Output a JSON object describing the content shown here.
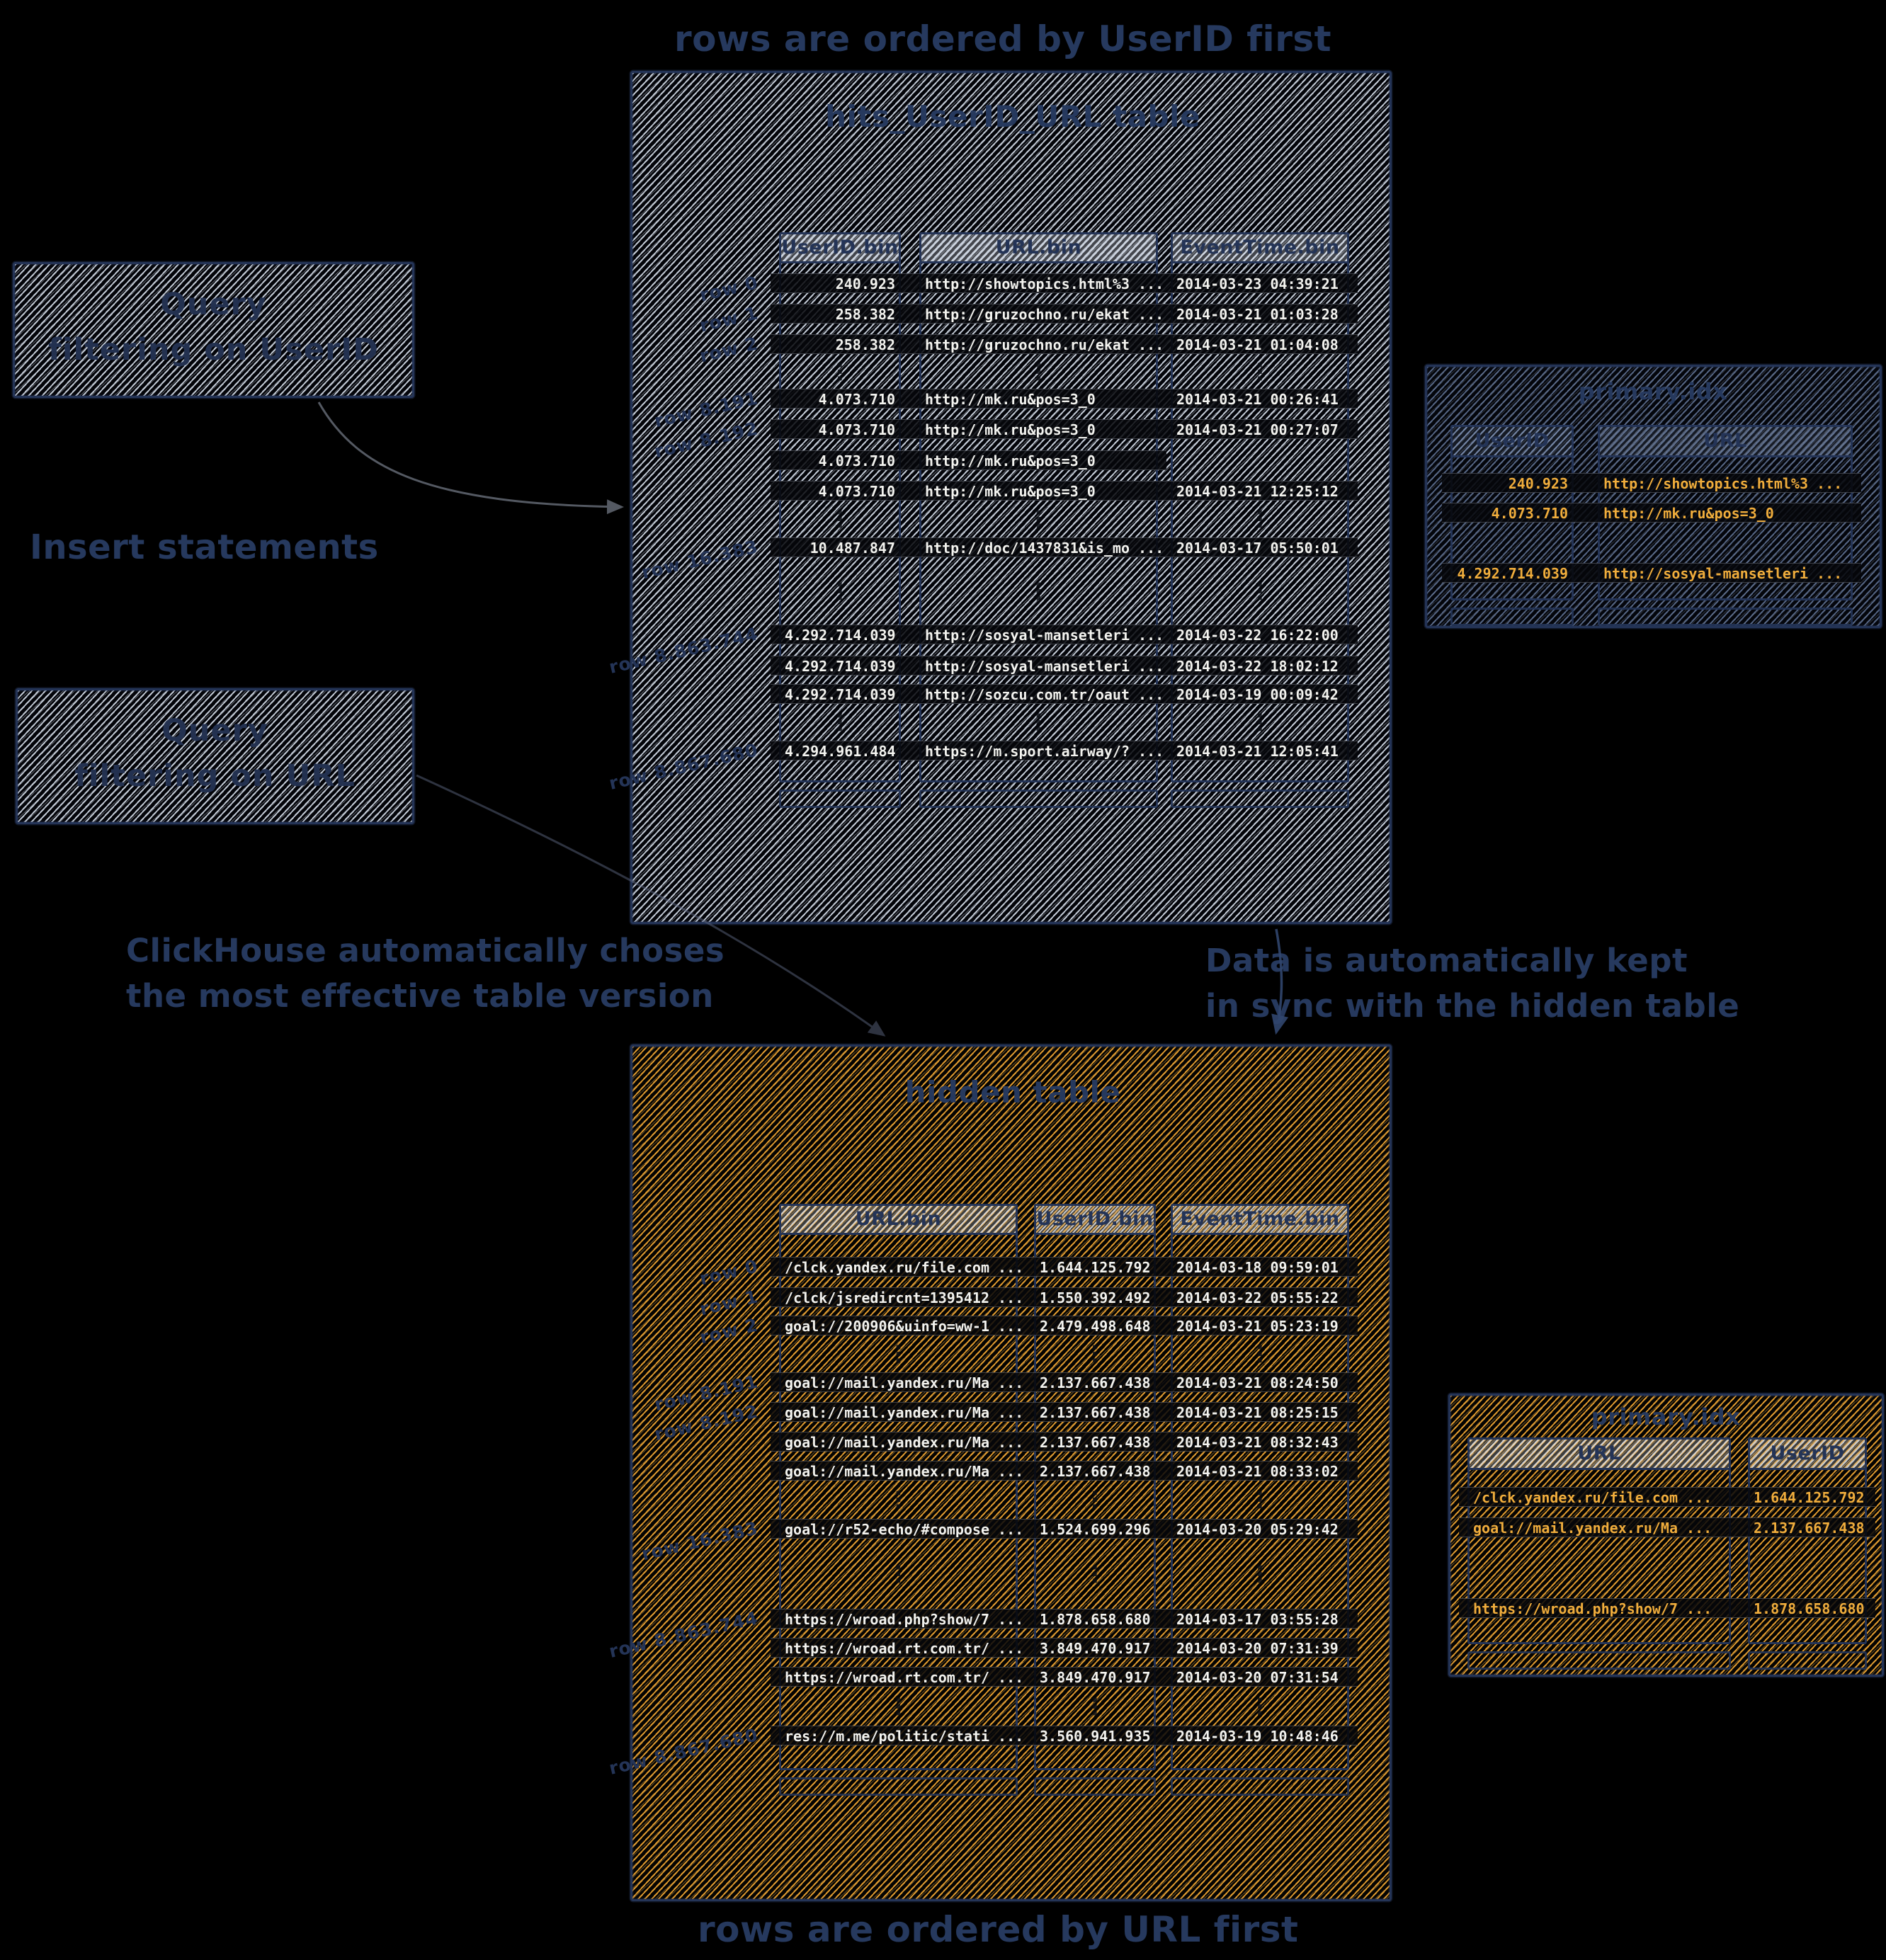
{
  "colors": {
    "background": "#000000",
    "ink_navy": "#26395e",
    "hatch_light": "#cfd6e1",
    "hatch_orange": "#eda637",
    "row_text_white": "#f3f3ef",
    "row_text_orange": "#f3b13e"
  },
  "captions": {
    "top": "rows are ordered by UserID first",
    "bottom": "rows are ordered by URL first",
    "left_middle_line1": "ClickHouse automatically choses",
    "left_middle_line2": "the most effective table version",
    "right_middle_line1": "Data is automatically kept",
    "right_middle_line2": "in sync with the hidden table"
  },
  "left_panel": {
    "query_userid_box": {
      "line1": "Query",
      "line2": "filtering on UserID"
    },
    "insert_label": "Insert statements",
    "query_url_box": {
      "line1": "Query",
      "line2": "filtering on URL"
    }
  },
  "main_table": {
    "title": "hits_UserID_URL table",
    "columns": [
      "UserID.bin",
      "URL.bin",
      "EventTime.bin"
    ],
    "row_groups": [
      {
        "rows": [
          {
            "label": "row 0",
            "cells": [
              "240.923",
              "http://showtopics.html%3 ...",
              "2014-03-23 04:39:21"
            ]
          },
          {
            "label": "row 1",
            "cells": [
              "258.382",
              "http://gruzochno.ru/ekat ...",
              "2014-03-21 01:03:28"
            ]
          },
          {
            "label": "row 2",
            "cells": [
              "258.382",
              "http://gruzochno.ru/ekat ...",
              "2014-03-21 01:04:08"
            ]
          }
        ]
      },
      {
        "rows": [
          {
            "label": "row 8.191",
            "cells": [
              "4.073.710",
              "http://mk.ru&pos=3_0",
              "2014-03-21 00:26:41"
            ]
          },
          {
            "label": "row 8.192",
            "cells": [
              "4.073.710",
              "http://mk.ru&pos=3_0",
              "2014-03-21 00:27:07"
            ]
          },
          {
            "label": "",
            "cells": [
              "4.073.710",
              "http://mk.ru&pos=3_0",
              ""
            ]
          },
          {
            "label": "",
            "cells": [
              "4.073.710",
              "http://mk.ru&pos=3_0",
              "2014-03-21 12:25:12"
            ]
          }
        ]
      },
      {
        "rows": [
          {
            "label": "row 16.383",
            "cells": [
              "10.487.847",
              "http://doc/1437831&is_mo ...",
              "2014-03-17 05:50:01"
            ]
          }
        ]
      },
      {
        "rows": [
          {
            "label": "row 8.863.744",
            "cells": [
              "4.292.714.039",
              "http://sosyal-mansetleri ...",
              "2014-03-22 16:22:00"
            ]
          },
          {
            "label": "",
            "cells": [
              "4.292.714.039",
              "http://sosyal-mansetleri ...",
              "2014-03-22 18:02:12"
            ]
          },
          {
            "label": "",
            "cells": [
              "4.292.714.039",
              "http://sozcu.com.tr/oaut ...",
              "2014-03-19 00:09:42"
            ]
          }
        ]
      },
      {
        "rows": [
          {
            "label": "row 8.867.680",
            "cells": [
              "4.294.961.484",
              "https://m.sport.airway/? ...",
              "2014-03-21 12:05:41"
            ]
          }
        ]
      }
    ]
  },
  "hidden_table": {
    "title": "hidden table",
    "columns": [
      "URL.bin",
      "UserID.bin",
      "EventTime.bin"
    ],
    "row_groups": [
      {
        "rows": [
          {
            "label": "row 0",
            "cells": [
              "/clck.yandex.ru/file.com ...",
              "1.644.125.792",
              "2014-03-18 09:59:01"
            ]
          },
          {
            "label": "row 1",
            "cells": [
              "/clck/jsredircnt=1395412 ...",
              "1.550.392.492",
              "2014-03-22 05:55:22"
            ]
          },
          {
            "label": "row 2",
            "cells": [
              "goal://200906&uinfo=ww-1 ...",
              "2.479.498.648",
              "2014-03-21 05:23:19"
            ]
          }
        ]
      },
      {
        "rows": [
          {
            "label": "row 8.191",
            "cells": [
              "goal://mail.yandex.ru/Ma ...",
              "2.137.667.438",
              "2014-03-21 08:24:50"
            ]
          },
          {
            "label": "row 8.192",
            "cells": [
              "goal://mail.yandex.ru/Ma ...",
              "2.137.667.438",
              "2014-03-21 08:25:15"
            ]
          },
          {
            "label": "",
            "cells": [
              "goal://mail.yandex.ru/Ma ...",
              "2.137.667.438",
              "2014-03-21 08:32:43"
            ]
          },
          {
            "label": "",
            "cells": [
              "goal://mail.yandex.ru/Ma ...",
              "2.137.667.438",
              "2014-03-21 08:33:02"
            ]
          }
        ]
      },
      {
        "rows": [
          {
            "label": "row 16.383",
            "cells": [
              "goal://r52-echo/#compose ...",
              "1.524.699.296",
              "2014-03-20 05:29:42"
            ]
          }
        ]
      },
      {
        "rows": [
          {
            "label": "row 8.863.744",
            "cells": [
              "https://wroad.php?show/7 ...",
              "1.878.658.680",
              "2014-03-17 03:55:28"
            ]
          },
          {
            "label": "",
            "cells": [
              "https://wroad.rt.com.tr/ ...",
              "3.849.470.917",
              "2014-03-20 07:31:39"
            ]
          },
          {
            "label": "",
            "cells": [
              "https://wroad.rt.com.tr/ ...",
              "3.849.470.917",
              "2014-03-20 07:31:54"
            ]
          }
        ]
      },
      {
        "rows": [
          {
            "label": "row 8.867.680",
            "cells": [
              "res://m.me/politic/stati ...",
              "3.560.941.935",
              "2014-03-19 10:48:46"
            ]
          }
        ]
      }
    ]
  },
  "index_top": {
    "title": "primary.idx",
    "columns": [
      "UserID",
      "URL"
    ],
    "row_groups": [
      {
        "rows": [
          {
            "label": "",
            "cells": [
              "240.923",
              "http://showtopics.html%3 ..."
            ]
          },
          {
            "label": "",
            "cells": [
              "4.073.710",
              "http://mk.ru&pos=3_0"
            ]
          }
        ]
      },
      {
        "rows": [
          {
            "label": "",
            "cells": [
              "4.292.714.039",
              "http://sosyal-mansetleri ..."
            ]
          }
        ]
      }
    ]
  },
  "index_bottom": {
    "title": "primary.idx",
    "columns": [
      "URL",
      "UserID"
    ],
    "row_groups": [
      {
        "rows": [
          {
            "label": "",
            "cells": [
              "/clck.yandex.ru/file.com ...",
              "1.644.125.792"
            ]
          },
          {
            "label": "",
            "cells": [
              "goal://mail.yandex.ru/Ma ...",
              "2.137.667.438"
            ]
          }
        ]
      },
      {
        "rows": [
          {
            "label": "",
            "cells": [
              "https://wroad.php?show/7 ...",
              "1.878.658.680"
            ]
          }
        ]
      }
    ]
  }
}
